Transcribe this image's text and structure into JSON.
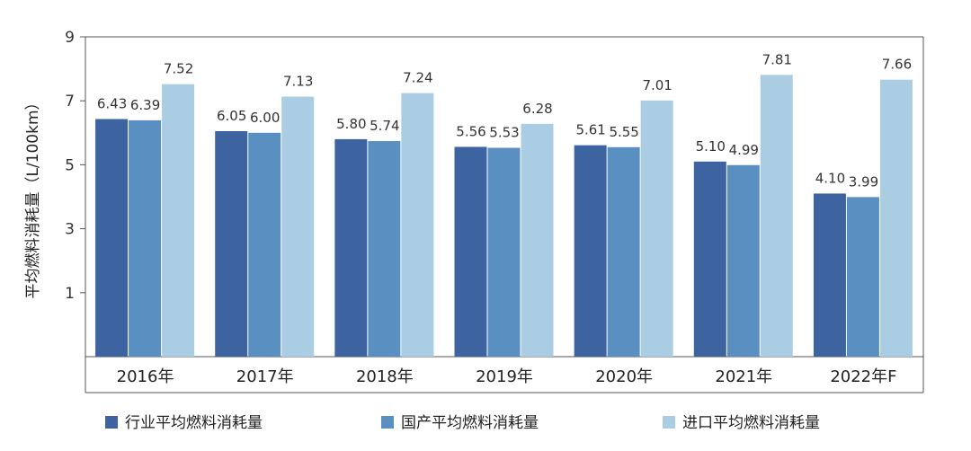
{
  "chart_data": {
    "type": "bar",
    "ylabel": "平均燃料消耗量（L/100km）",
    "ylim": [
      -1,
      9
    ],
    "yticks": [
      1,
      3,
      5,
      7,
      9
    ],
    "categories": [
      "2016年",
      "2017年",
      "2018年",
      "2019年",
      "2020年",
      "2021年",
      "2022年F"
    ],
    "series": [
      {
        "name": "行业平均燃料消耗量",
        "color": "#3d64a0",
        "values": [
          6.43,
          6.05,
          5.8,
          5.56,
          5.61,
          5.1,
          4.1
        ],
        "labels": [
          "6.43",
          "6.05",
          "5.80",
          "5.56",
          "5.61",
          "5.10",
          "4.10"
        ]
      },
      {
        "name": "国产平均燃料消耗量",
        "color": "#5a8fc2",
        "values": [
          6.39,
          6.0,
          5.74,
          5.53,
          5.55,
          4.99,
          3.99
        ],
        "labels": [
          "6.39",
          "6.00",
          "5.74",
          "5.53",
          "5.55",
          "4.99",
          "3.99"
        ]
      },
      {
        "name": "进口平均燃料消耗量",
        "color": "#aacde3",
        "values": [
          7.52,
          7.13,
          7.24,
          6.28,
          7.01,
          7.81,
          7.66
        ],
        "labels": [
          "7.52",
          "7.13",
          "7.24",
          "6.28",
          "7.01",
          "7.81",
          "7.66"
        ]
      }
    ],
    "grid": false,
    "legend": "bottom"
  }
}
